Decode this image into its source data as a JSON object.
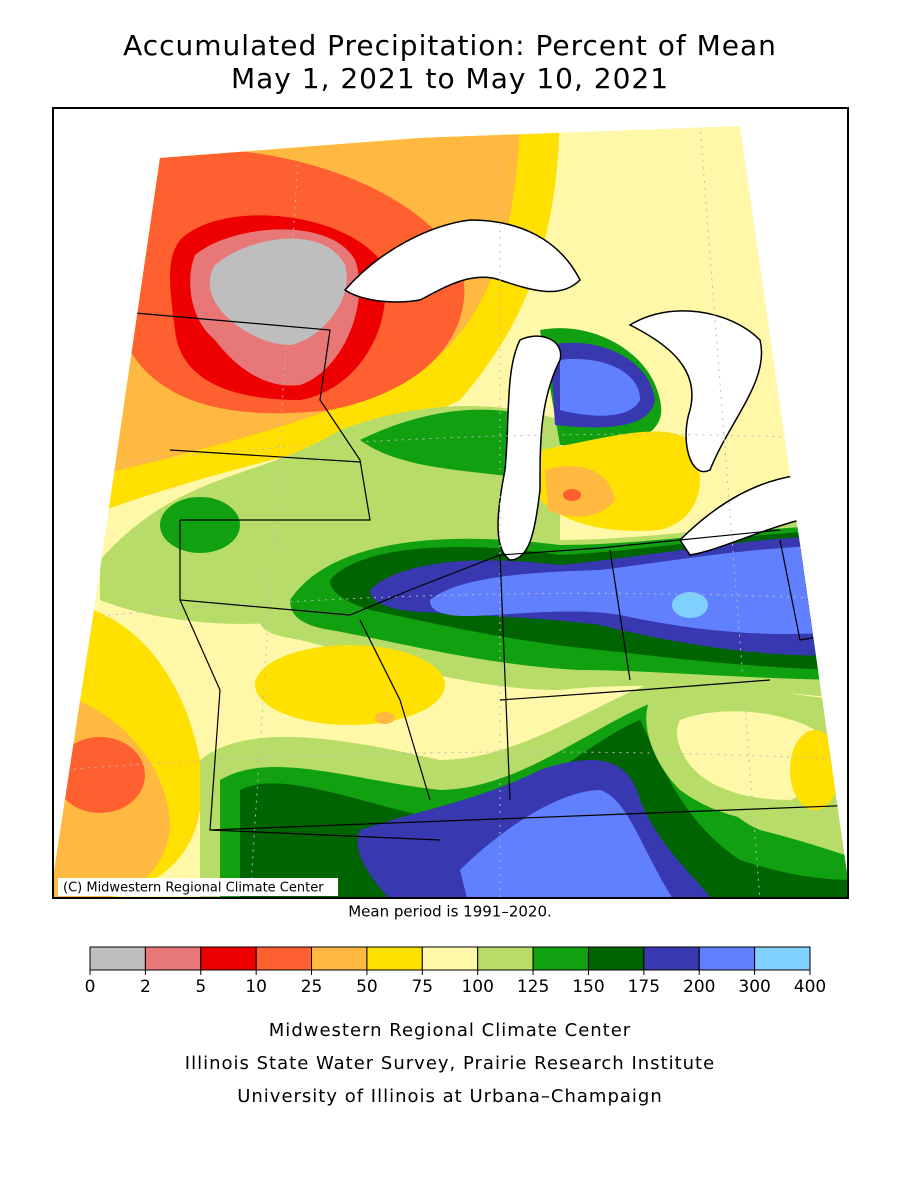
{
  "header": {
    "title": "Accumulated Precipitation: Percent of Mean",
    "subtitle": "May 1, 2021 to May 10, 2021"
  },
  "map": {
    "copyright": "(C) Midwestern Regional Climate Center",
    "note": "Mean period is 1991–2020."
  },
  "legend": {
    "breaks": [
      0,
      2,
      5,
      10,
      25,
      50,
      75,
      100,
      125,
      150,
      175,
      200,
      300,
      400
    ],
    "colors": [
      "#bebebe",
      "#e87878",
      "#ee0000",
      "#ff6030",
      "#ffb840",
      "#ffe000",
      "#fff8a8",
      "#b8dc68",
      "#10a010",
      "#006400",
      "#3838b0",
      "#6080ff",
      "#80d0ff"
    ]
  },
  "footer": {
    "lines": [
      "Midwestern Regional Climate Center",
      "Illinois State Water Survey, Prairie Research Institute",
      "University of Illinois at Urbana–Champaign"
    ]
  }
}
